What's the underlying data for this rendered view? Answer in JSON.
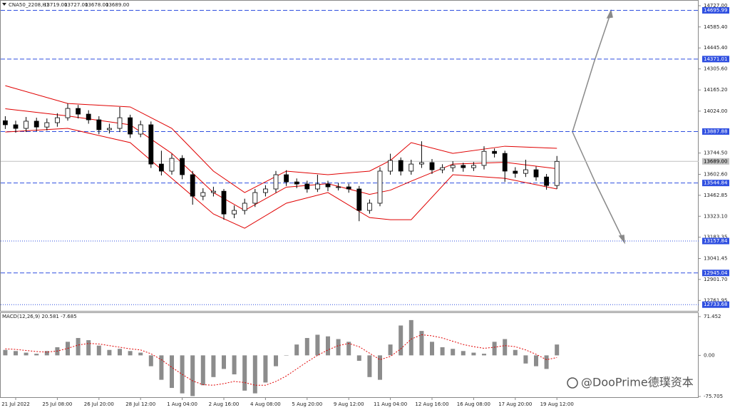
{
  "header": {
    "symbol": "CNA50_2208,H1",
    "ohlc": [
      "13719.00",
      "13727.00",
      "13678.00",
      "13689.00"
    ]
  },
  "watermark": "@DooPrime德璞资本",
  "chart_data": [
    {
      "type": "candlestick",
      "categories": [
        null,
        "21 Jul 2022",
        null,
        null,
        null,
        "25 Jul 08:00",
        null,
        null,
        null,
        "26 Jul 20:00",
        null,
        null,
        null,
        "28 Jul 12:00",
        null,
        null,
        null,
        "1 Aug 04:00",
        null,
        null,
        null,
        "2 Aug 16:00",
        null,
        null,
        null,
        "4 Aug 08:00",
        null,
        null,
        null,
        "5 Aug 20:00",
        null,
        null,
        null,
        "9 Aug 12:00",
        null,
        null,
        null,
        "11 Aug 04:00",
        null,
        null,
        null,
        "12 Aug 16:00",
        null,
        null,
        null,
        "16 Aug 08:00",
        null,
        null,
        null,
        "17 Aug 20:00",
        null,
        null,
        null,
        "19 Aug 12:00"
      ],
      "open": [
        13960,
        13933,
        13909,
        13957,
        13918,
        13947,
        13980,
        14042,
        14004,
        13966,
        13900,
        13909,
        13980,
        13871,
        13933,
        13671,
        13624,
        13709,
        13600,
        13457,
        13481,
        13490,
        13338,
        13362,
        13410,
        13481,
        13505,
        13600,
        13552,
        13538,
        13505,
        13538,
        13519,
        13519,
        13505,
        13362,
        13410,
        13624,
        13695,
        13624,
        13671,
        13681,
        13633,
        13647,
        13662,
        13647,
        13662,
        13756,
        13742,
        13624,
        13609,
        13633,
        13585,
        13528
      ],
      "high": [
        13990,
        13960,
        13985,
        13980,
        13975,
        14010,
        14075,
        14065,
        14030,
        13990,
        13940,
        14052,
        14000,
        13960,
        13955,
        13760,
        13740,
        13730,
        13625,
        13510,
        13520,
        13505,
        13395,
        13440,
        13505,
        13530,
        13625,
        13630,
        13575,
        13560,
        13600,
        13560,
        13545,
        13540,
        13525,
        13435,
        13650,
        13740,
        13715,
        13700,
        13823,
        13705,
        13670,
        13690,
        13680,
        13685,
        13790,
        13775,
        13760,
        13650,
        13700,
        13655,
        13605,
        13725
      ],
      "low": [
        13905,
        13880,
        13885,
        13890,
        13895,
        13920,
        13960,
        13975,
        13940,
        13870,
        13875,
        13885,
        13845,
        13850,
        13645,
        13595,
        13600,
        13570,
        13400,
        13430,
        13455,
        13300,
        13310,
        13335,
        13385,
        13455,
        13480,
        13525,
        13510,
        13480,
        13485,
        13490,
        13495,
        13480,
        13290,
        13340,
        13390,
        13600,
        13595,
        13600,
        13645,
        13605,
        13610,
        13620,
        13620,
        13625,
        13635,
        13715,
        13552,
        13580,
        13585,
        13560,
        13500,
        13505
      ],
      "close": [
        13933,
        13909,
        13957,
        13918,
        13947,
        13980,
        14042,
        14004,
        13966,
        13900,
        13909,
        13980,
        13871,
        13933,
        13671,
        13624,
        13709,
        13600,
        13457,
        13481,
        13490,
        13338,
        13362,
        13410,
        13481,
        13505,
        13600,
        13552,
        13538,
        13505,
        13538,
        13519,
        13519,
        13505,
        13362,
        13410,
        13624,
        13695,
        13624,
        13671,
        13681,
        13633,
        13647,
        13662,
        13647,
        13662,
        13756,
        13742,
        13624,
        13609,
        13633,
        13585,
        13528,
        13689
      ],
      "bands": {
        "color": "#e00000",
        "x": [
          0,
          6,
          12,
          16,
          20,
          23,
          27,
          31,
          35,
          37,
          39,
          43,
          48,
          53
        ],
        "series": [
          {
            "values": [
              14194,
              14075,
              14052,
              13909,
              13624,
              13481,
              13624,
              13600,
              13624,
              13695,
              13814,
              13742,
              13790,
              13776
            ]
          },
          {
            "values": [
              14040,
              13992,
              13933,
              13742,
              13481,
              13362,
              13517,
              13540,
              13469,
              13497,
              13557,
              13671,
              13683,
              13640
            ]
          },
          {
            "values": [
              13885,
              13909,
              13814,
              13576,
              13338,
              13243,
              13410,
              13481,
              13314,
              13300,
              13300,
              13600,
              13576,
              13505
            ]
          }
        ]
      },
      "ylim": [
        12692,
        14765
      ],
      "yticks": [
        {
          "value": 14727,
          "label": "14727.00"
        },
        {
          "value": 14585.4,
          "label": "14585.40"
        },
        {
          "value": 14445.4,
          "label": "14445.40"
        },
        {
          "value": 14305.6,
          "label": "14305.60"
        },
        {
          "value": 14165.2,
          "label": "14165.20"
        },
        {
          "value": 14024,
          "label": "14024.00"
        },
        {
          "value": 13744.5,
          "label": "13744.50"
        },
        {
          "value": 13602.6,
          "label": "13602.60"
        },
        13462.85,
        {
          "value": 13323.1,
          "label": "13323.10"
        },
        13183.35,
        13041.45,
        {
          "value": 12901.7,
          "label": "12901.70"
        },
        12761.95
      ],
      "levels": [
        {
          "price": 14695.99,
          "style": "dashed",
          "color": "#2f4fe0"
        },
        {
          "price": 14371.01,
          "style": "dashed",
          "color": "#2f4fe0"
        },
        {
          "price": 13887.88,
          "style": "dashed",
          "color": "#2f4fe0"
        },
        {
          "price": {
            "value": 13689,
            "label": "13689.00"
          },
          "style": "solid",
          "color": "#c0c0c0"
        },
        {
          "price": 13544.84,
          "style": "dashed",
          "color": "#2f4fe0"
        },
        {
          "price": 13157.84,
          "style": "dotted",
          "color": "#2f4fe0"
        },
        {
          "price": 12945.04,
          "style": "dashed",
          "color": "#2f4fe0"
        },
        {
          "price": 12733.68,
          "style": "dotted",
          "color": "#2f4fe0"
        }
      ]
    },
    {
      "type": "macd",
      "title": "MACD(12,26,9) 20.581 -7.685",
      "histogram": {
        "color": "#8c8c8c",
        "values": [
          10,
          8,
          5,
          3,
          8,
          15,
          25,
          32,
          28,
          18,
          10,
          12,
          8,
          5,
          -20,
          -45,
          -60,
          -70,
          -75,
          -55,
          -40,
          -25,
          -35,
          -65,
          -70,
          -50,
          -20,
          0,
          20,
          32,
          38,
          35,
          30,
          25,
          -10,
          -40,
          -45,
          20,
          55,
          65,
          45,
          25,
          15,
          12,
          8,
          5,
          3,
          25,
          30,
          10,
          -15,
          -20,
          -25,
          20
        ]
      },
      "signal": {
        "color": "#e00000",
        "values": [
          12,
          11,
          9,
          7,
          6,
          8,
          13,
          19,
          22,
          21,
          18,
          15,
          12,
          10,
          3,
          -8,
          -22,
          -35,
          -47,
          -54,
          -55,
          -52,
          -48,
          -50,
          -55,
          -55,
          -48,
          -38,
          -25,
          -12,
          0,
          10,
          18,
          22,
          16,
          4,
          -8,
          -2,
          12,
          30,
          38,
          36,
          32,
          26,
          20,
          16,
          13,
          15,
          18,
          16,
          10,
          2,
          -8,
          -4
        ]
      },
      "ylim": [
        -77,
        78
      ],
      "yticks": [
        71.452,
        {
          "value": 0,
          "label": "0.00"
        },
        -75.705
      ]
    }
  ]
}
